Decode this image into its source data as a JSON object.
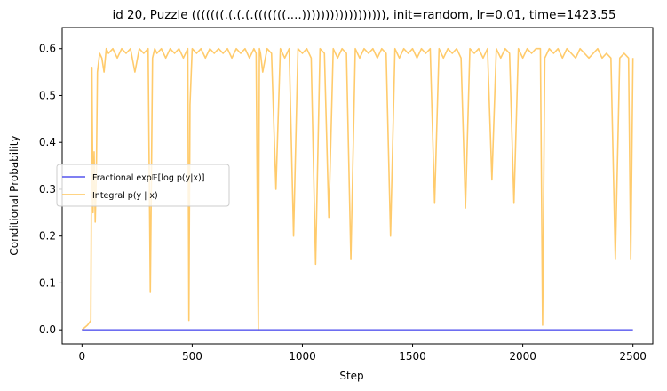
{
  "chart_data": {
    "type": "line",
    "title": "id 20, Puzzle (((((((.(.(.(.(((((((....)))))))))))))))))), init=random, lr=0.01, time=1423.55",
    "xlabel": "Step",
    "ylabel": "Conditional Probability",
    "xlim": [
      -90,
      2590
    ],
    "ylim": [
      -0.03,
      0.645
    ],
    "xticks": [
      0,
      500,
      1000,
      1500,
      2000,
      2500
    ],
    "xtick_labels": [
      "0",
      "500",
      "1000",
      "1500",
      "2000",
      "2500"
    ],
    "yticks": [
      0.0,
      0.1,
      0.2,
      0.3,
      0.4,
      0.5,
      0.6
    ],
    "ytick_labels": [
      "0.0",
      "0.1",
      "0.2",
      "0.3",
      "0.4",
      "0.5",
      "0.6"
    ],
    "grid": false,
    "legend_position": "center-left",
    "series": [
      {
        "name": "Fractional exp𝔼[log p(y|x)]",
        "color": "#5555ee",
        "x": [
          0,
          2500
        ],
        "y": [
          0.0,
          0.0
        ]
      },
      {
        "name": "Integral p(y | x)",
        "color": "#ffc55c",
        "x": [
          0,
          25,
          40,
          45,
          50,
          55,
          60,
          65,
          70,
          80,
          90,
          100,
          110,
          120,
          140,
          160,
          180,
          200,
          220,
          240,
          260,
          280,
          300,
          310,
          320,
          330,
          340,
          360,
          380,
          400,
          420,
          440,
          460,
          480,
          485,
          490,
          500,
          520,
          540,
          560,
          580,
          600,
          620,
          640,
          660,
          680,
          700,
          720,
          740,
          760,
          780,
          790,
          800,
          805,
          810,
          820,
          840,
          860,
          880,
          900,
          920,
          940,
          960,
          980,
          1000,
          1020,
          1040,
          1060,
          1080,
          1100,
          1120,
          1140,
          1160,
          1180,
          1200,
          1220,
          1240,
          1260,
          1280,
          1300,
          1320,
          1340,
          1360,
          1380,
          1400,
          1420,
          1440,
          1460,
          1480,
          1500,
          1520,
          1540,
          1560,
          1580,
          1600,
          1620,
          1640,
          1660,
          1680,
          1700,
          1720,
          1740,
          1760,
          1780,
          1800,
          1820,
          1840,
          1860,
          1880,
          1900,
          1920,
          1940,
          1960,
          1980,
          2000,
          2020,
          2040,
          2060,
          2080,
          2090,
          2100,
          2120,
          2140,
          2160,
          2180,
          2200,
          2220,
          2240,
          2260,
          2280,
          2300,
          2320,
          2340,
          2360,
          2380,
          2400,
          2420,
          2440,
          2460,
          2480,
          2490,
          2500
        ],
        "y": [
          0.0,
          0.01,
          0.02,
          0.56,
          0.25,
          0.38,
          0.23,
          0.33,
          0.55,
          0.59,
          0.58,
          0.55,
          0.6,
          0.59,
          0.6,
          0.58,
          0.6,
          0.59,
          0.6,
          0.55,
          0.6,
          0.59,
          0.6,
          0.08,
          0.58,
          0.6,
          0.59,
          0.6,
          0.58,
          0.6,
          0.59,
          0.6,
          0.58,
          0.6,
          0.02,
          0.48,
          0.6,
          0.59,
          0.6,
          0.58,
          0.6,
          0.59,
          0.6,
          0.59,
          0.6,
          0.58,
          0.6,
          0.59,
          0.6,
          0.58,
          0.6,
          0.59,
          0.0,
          0.6,
          0.59,
          0.55,
          0.6,
          0.59,
          0.3,
          0.6,
          0.58,
          0.6,
          0.2,
          0.6,
          0.59,
          0.6,
          0.58,
          0.14,
          0.6,
          0.59,
          0.24,
          0.6,
          0.58,
          0.6,
          0.59,
          0.15,
          0.6,
          0.58,
          0.6,
          0.59,
          0.6,
          0.58,
          0.6,
          0.59,
          0.2,
          0.6,
          0.58,
          0.6,
          0.59,
          0.6,
          0.58,
          0.6,
          0.59,
          0.6,
          0.27,
          0.6,
          0.58,
          0.6,
          0.59,
          0.6,
          0.58,
          0.26,
          0.6,
          0.59,
          0.6,
          0.58,
          0.6,
          0.32,
          0.6,
          0.58,
          0.6,
          0.59,
          0.27,
          0.6,
          0.58,
          0.6,
          0.59,
          0.6,
          0.6,
          0.01,
          0.58,
          0.6,
          0.59,
          0.6,
          0.58,
          0.6,
          0.59,
          0.58,
          0.6,
          0.59,
          0.58,
          0.59,
          0.6,
          0.58,
          0.59,
          0.58,
          0.15,
          0.58,
          0.59,
          0.58,
          0.15,
          0.58
        ]
      }
    ]
  }
}
